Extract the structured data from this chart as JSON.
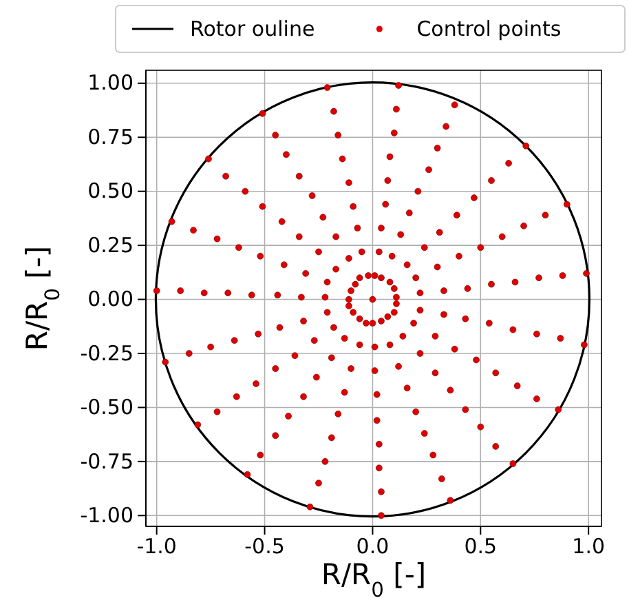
{
  "chart_data": {
    "type": "scatter",
    "xlabel": "R/R$_{0}$ [-]",
    "ylabel": "R/R$_{0}$ [-]",
    "xlim": [
      -1.05,
      1.06
    ],
    "ylim": [
      -1.05,
      1.06
    ],
    "xticks": [
      {
        "value": -1,
        "label": "-1.0"
      },
      {
        "value": -0.5,
        "label": "-0.5"
      },
      {
        "value": 0,
        "label": "0.0"
      },
      {
        "value": 0.5,
        "label": "0.5"
      },
      {
        "value": 1,
        "label": "1.0"
      }
    ],
    "yticks": [
      {
        "value": -1,
        "label": "-1.00"
      },
      {
        "value": -0.75,
        "label": "-0.75"
      },
      {
        "value": -0.5,
        "label": "-0.50"
      },
      {
        "value": -0.25,
        "label": "-0.25"
      },
      {
        "value": 0,
        "label": "0.00"
      },
      {
        "value": 0.25,
        "label": "0.25"
      },
      {
        "value": 0.5,
        "label": "0.50"
      },
      {
        "value": 0.75,
        "label": "0.75"
      },
      {
        "value": 1,
        "label": "1.00"
      }
    ],
    "grid": true,
    "legend": "top",
    "series": [
      {
        "name": "Rotor ouline",
        "type": "line",
        "color": "#000000"
      },
      {
        "name": "Control points",
        "color": "#e00000",
        "marker": "circle",
        "x": [
          0,
          0.11,
          0.22,
          0.33,
          0.44,
          0.55,
          0.66,
          0.77,
          0.88,
          0.99,
          0.1,
          0.2,
          0.3,
          0.4,
          0.5,
          0.6,
          0.7,
          0.8,
          0.9,
          0.08,
          0.16,
          0.24,
          0.31,
          0.39,
          0.47,
          0.55,
          0.63,
          0.71,
          0.04,
          0.09,
          0.13,
          0.17,
          0.21,
          0.26,
          0.3,
          0.34,
          0.38,
          0.01,
          0.03,
          0.04,
          0.06,
          0.07,
          0.08,
          0.1,
          0.11,
          0.12,
          -0.02,
          -0.05,
          -0.07,
          -0.09,
          -0.11,
          -0.14,
          -0.16,
          -0.18,
          -0.21,
          -0.06,
          -0.11,
          -0.17,
          -0.23,
          -0.28,
          -0.34,
          -0.4,
          -0.45,
          -0.51,
          -0.08,
          -0.17,
          -0.25,
          -0.34,
          -0.42,
          -0.51,
          -0.59,
          -0.68,
          -0.76,
          -0.1,
          -0.21,
          -0.31,
          -0.41,
          -0.52,
          -0.62,
          -0.72,
          -0.83,
          -0.93,
          -0.11,
          -0.22,
          -0.33,
          -0.44,
          -0.56,
          -0.67,
          -0.78,
          -0.89,
          -1.0,
          -0.11,
          -0.21,
          -0.32,
          -0.43,
          -0.53,
          -0.64,
          -0.75,
          -0.85,
          -0.96,
          -0.09,
          -0.18,
          -0.27,
          -0.36,
          -0.45,
          -0.54,
          -0.63,
          -0.72,
          -0.81,
          -0.06,
          -0.13,
          -0.19,
          -0.26,
          -0.32,
          -0.39,
          -0.45,
          -0.52,
          -0.58,
          -0.03,
          -0.06,
          -0.1,
          -0.13,
          -0.16,
          -0.19,
          -0.22,
          -0.25,
          -0.29,
          0.0,
          0.01,
          0.01,
          0.02,
          0.02,
          0.03,
          0.03,
          0.04,
          0.04,
          0.04,
          0.08,
          0.12,
          0.16,
          0.2,
          0.24,
          0.28,
          0.32,
          0.36,
          0.07,
          0.14,
          0.22,
          0.29,
          0.36,
          0.43,
          0.5,
          0.57,
          0.65,
          0.1,
          0.19,
          0.29,
          0.38,
          0.48,
          0.57,
          0.67,
          0.76,
          0.86,
          0.11,
          0.22,
          0.33,
          0.43,
          0.54,
          0.65,
          0.76,
          0.87,
          0.98
        ],
        "values": [
          0,
          0.01,
          0.03,
          0.04,
          0.05,
          0.07,
          0.08,
          0.1,
          0.11,
          0.12,
          0.05,
          0.1,
          0.15,
          0.2,
          0.24,
          0.29,
          0.34,
          0.39,
          0.44,
          0.08,
          0.16,
          0.24,
          0.31,
          0.39,
          0.47,
          0.55,
          0.63,
          0.71,
          0.1,
          0.2,
          0.3,
          0.4,
          0.5,
          0.6,
          0.7,
          0.8,
          0.9,
          0.11,
          0.22,
          0.33,
          0.44,
          0.55,
          0.66,
          0.77,
          0.88,
          0.99,
          0.11,
          0.22,
          0.33,
          0.43,
          0.54,
          0.65,
          0.76,
          0.87,
          0.98,
          0.1,
          0.19,
          0.29,
          0.38,
          0.48,
          0.57,
          0.67,
          0.76,
          0.86,
          0.07,
          0.14,
          0.22,
          0.29,
          0.36,
          0.43,
          0.5,
          0.57,
          0.65,
          0.04,
          0.08,
          0.12,
          0.16,
          0.2,
          0.24,
          0.28,
          0.32,
          0.36,
          0.0,
          0.01,
          0.01,
          0.02,
          0.02,
          0.03,
          0.03,
          0.04,
          0.04,
          -0.03,
          -0.06,
          -0.1,
          -0.13,
          -0.16,
          -0.19,
          -0.22,
          -0.25,
          -0.29,
          -0.06,
          -0.13,
          -0.19,
          -0.26,
          -0.32,
          -0.39,
          -0.45,
          -0.52,
          -0.58,
          -0.09,
          -0.18,
          -0.27,
          -0.36,
          -0.45,
          -0.54,
          -0.63,
          -0.72,
          -0.81,
          -0.11,
          -0.21,
          -0.32,
          -0.43,
          -0.53,
          -0.64,
          -0.75,
          -0.85,
          -0.96,
          -0.11,
          -0.22,
          -0.33,
          -0.44,
          -0.56,
          -0.67,
          -0.78,
          -0.89,
          -1.0,
          -0.1,
          -0.21,
          -0.31,
          -0.41,
          -0.52,
          -0.62,
          -0.72,
          -0.83,
          -0.93,
          -0.08,
          -0.17,
          -0.25,
          -0.34,
          -0.42,
          -0.51,
          -0.59,
          -0.68,
          -0.76,
          -0.06,
          -0.11,
          -0.17,
          -0.23,
          -0.28,
          -0.34,
          -0.4,
          -0.46,
          -0.51,
          -0.02,
          -0.05,
          -0.07,
          -0.09,
          -0.11,
          -0.14,
          -0.16,
          -0.18,
          -0.21
        ]
      }
    ]
  }
}
